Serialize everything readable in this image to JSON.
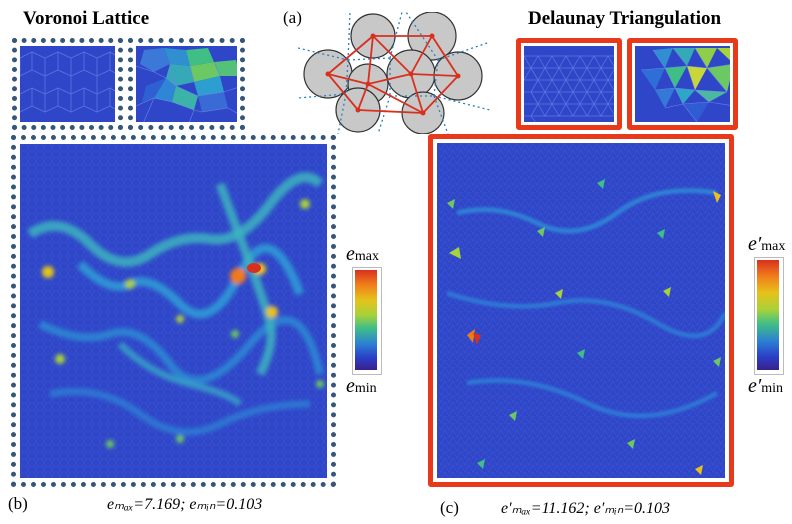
{
  "titles": {
    "voronoi": "Voronoi Lattice",
    "delaunay": "Delaunay Triangulation"
  },
  "panel_labels": {
    "a": "(a)",
    "b": "(b)",
    "c": "(c)"
  },
  "colorbar_left": {
    "max_var": "e",
    "max_sub": "max",
    "min_var": "e",
    "min_sub": "min"
  },
  "colorbar_right": {
    "max_var": "e′",
    "max_sub": "max",
    "min_var": "e′",
    "min_sub": "min"
  },
  "captions": {
    "left": "eₘₐₓ=7.169; eₘᵢₙ=0.103",
    "right": "e′ₘₐₓ=11.162; e′ₘᵢₙ=0.103"
  },
  "colors": {
    "dotted_frame": "#34567a",
    "red_frame": "#e8391b",
    "map_background": "#2f46c8",
    "disk_fill": "#c8c8c8",
    "delaunay_edge": "#d7301f",
    "voronoi_edge": "#2a7fc0"
  }
}
